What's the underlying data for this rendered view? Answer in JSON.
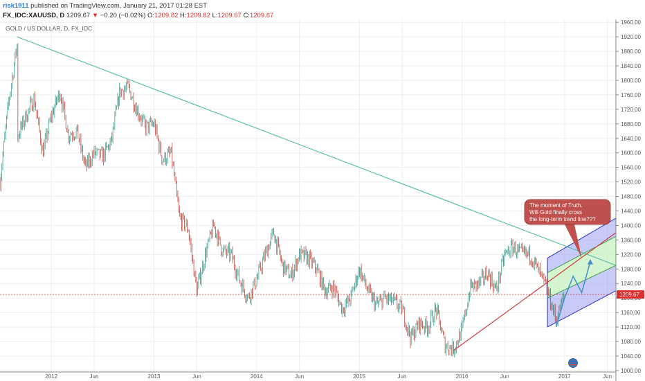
{
  "header": {
    "user": "risk1911",
    "published": " published on TradingView.com, January 21, 2017 01:28 EST",
    "symbol": "FX_IDC:XAUUSD, D",
    "last": "1209.67",
    "down_arrow": "▼",
    "change": "−0.20 (−0.02%)",
    "o_label": "O:",
    "o_value": "1209.82",
    "h_label": "H:",
    "h_value": "1209.82",
    "l_label": "L:",
    "l_value": "1209.67",
    "c_label": "C:",
    "c_value": "1209.67"
  },
  "chart_data": {
    "type": "candlestick",
    "title": "GOLD / US DOLLAR, D, FX_IDC",
    "ylim": [
      996,
      1968
    ],
    "y_ticks": [
      1000,
      1040,
      1080,
      1120,
      1160,
      1200,
      1240,
      1280,
      1320,
      1360,
      1400,
      1440,
      1480,
      1520,
      1560,
      1600,
      1640,
      1680,
      1720,
      1760,
      1800,
      1840,
      1880,
      1920,
      1960
    ],
    "x_tick_labels": [
      "2012",
      "Jun",
      "2013",
      "Jun",
      "2014",
      "Jun",
      "2015",
      "Jun",
      "2016",
      "Jun",
      "2017",
      "Jun"
    ],
    "x_tick_dates": [
      "2012-01",
      "2012-06",
      "2013-01",
      "2013-06",
      "2014-01",
      "2014-06",
      "2015-01",
      "2015-06",
      "2016-01",
      "2016-06",
      "2017-01",
      "2017-06"
    ],
    "x_range": [
      "2011-07",
      "2017-07"
    ],
    "price_path": [
      [
        "2011-07",
        1520
      ],
      [
        "2011-08",
        1740
      ],
      [
        "2011-09",
        1900
      ],
      [
        "2011-09",
        1640
      ],
      [
        "2011-10",
        1700
      ],
      [
        "2011-11",
        1750
      ],
      [
        "2011-12",
        1600
      ],
      [
        "2012-01",
        1700
      ],
      [
        "2012-02",
        1770
      ],
      [
        "2012-03",
        1650
      ],
      [
        "2012-04",
        1660
      ],
      [
        "2012-05",
        1560
      ],
      [
        "2012-06",
        1600
      ],
      [
        "2012-07",
        1590
      ],
      [
        "2012-08",
        1630
      ],
      [
        "2012-09",
        1770
      ],
      [
        "2012-10",
        1780
      ],
      [
        "2012-11",
        1720
      ],
      [
        "2012-12",
        1670
      ],
      [
        "2013-01",
        1680
      ],
      [
        "2013-02",
        1580
      ],
      [
        "2013-03",
        1600
      ],
      [
        "2013-04",
        1420
      ],
      [
        "2013-05",
        1390
      ],
      [
        "2013-06",
        1220
      ],
      [
        "2013-07",
        1320
      ],
      [
        "2013-08",
        1400
      ],
      [
        "2013-09",
        1330
      ],
      [
        "2013-10",
        1320
      ],
      [
        "2013-11",
        1250
      ],
      [
        "2013-12",
        1200
      ],
      [
        "2014-01",
        1250
      ],
      [
        "2014-02",
        1320
      ],
      [
        "2014-03",
        1380
      ],
      [
        "2014-04",
        1290
      ],
      [
        "2014-05",
        1260
      ],
      [
        "2014-06",
        1320
      ],
      [
        "2014-07",
        1310
      ],
      [
        "2014-08",
        1280
      ],
      [
        "2014-09",
        1220
      ],
      [
        "2014-10",
        1230
      ],
      [
        "2014-11",
        1170
      ],
      [
        "2014-12",
        1200
      ],
      [
        "2015-01",
        1280
      ],
      [
        "2015-02",
        1220
      ],
      [
        "2015-03",
        1180
      ],
      [
        "2015-04",
        1200
      ],
      [
        "2015-05",
        1190
      ],
      [
        "2015-06",
        1170
      ],
      [
        "2015-07",
        1090
      ],
      [
        "2015-08",
        1130
      ],
      [
        "2015-09",
        1120
      ],
      [
        "2015-10",
        1170
      ],
      [
        "2015-11",
        1070
      ],
      [
        "2015-12",
        1060
      ],
      [
        "2016-01",
        1110
      ],
      [
        "2016-02",
        1230
      ],
      [
        "2016-03",
        1240
      ],
      [
        "2016-04",
        1270
      ],
      [
        "2016-05",
        1220
      ],
      [
        "2016-06",
        1320
      ],
      [
        "2016-07",
        1340
      ],
      [
        "2016-08",
        1320
      ],
      [
        "2016-09",
        1320
      ],
      [
        "2016-10",
        1270
      ],
      [
        "2016-11",
        1220
      ],
      [
        "2016-12",
        1140
      ],
      [
        "2017-01",
        1210
      ]
    ],
    "last_price": 1209.67,
    "last_price_label": "1209.67",
    "trend_line": {
      "from": [
        "2011-09",
        1920
      ],
      "to": [
        "2017-07",
        1290
      ]
    },
    "support_line": {
      "from": [
        "2015-12",
        1055
      ],
      "to": [
        "2017-07",
        1380
      ]
    },
    "channel": {
      "start": "2016-11",
      "end": "2017-07",
      "top": [
        1310,
        1420
      ],
      "upper_mid": [
        1270,
        1370
      ],
      "lower_mid": [
        1200,
        1290
      ],
      "bottom": [
        1120,
        1220
      ]
    },
    "projection_path": [
      [
        "2016-12",
        1120
      ],
      [
        "2017-01",
        1200
      ],
      [
        "2017-02",
        1260
      ],
      [
        "2017-03",
        1215
      ],
      [
        "2017-04",
        1300
      ]
    ],
    "annotation": {
      "lines": [
        "The moment of Truth.",
        "Will Gold finally cross",
        "the long-term trend line???"
      ],
      "points_to": [
        "2017-03",
        1310
      ]
    },
    "colors": {
      "up": "#3a9e8f",
      "down": "#c0473c",
      "trend_line": "#5cbfa5",
      "support_line": "#c93c3c",
      "channel_blue": "#9a9ef0",
      "channel_green": "#c7f0c0",
      "channel_border": "#2b2fc9",
      "annotation_fill": "#c0504d",
      "projection": "#4a8fd0",
      "price_line": "#d9302f"
    }
  }
}
